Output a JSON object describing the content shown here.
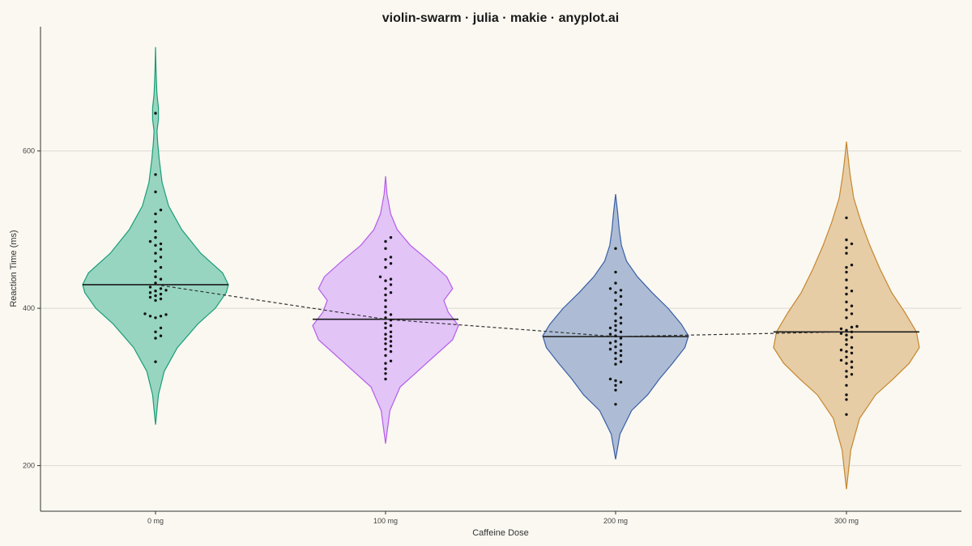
{
  "chart_data": {
    "type": "violin-swarm",
    "title": "violin-swarm · julia · makie · anyplot.ai",
    "xlabel": "Caffeine Dose",
    "ylabel": "Reaction Time (ms)",
    "ylim": [
      142,
      758
    ],
    "yticks": [
      200,
      400,
      600
    ],
    "categories": [
      "0 mg",
      "100 mg",
      "200 mg",
      "300 mg"
    ],
    "grid": "horizontal",
    "trend_line": "dashed line connecting group medians",
    "groups": [
      {
        "label": "0 mg",
        "color": "#1A9E77",
        "fill": "#97D5C1",
        "median": 430,
        "range": [
          252,
          732
        ],
        "density": [
          [
            252,
            0.0
          ],
          [
            290,
            0.04
          ],
          [
            320,
            0.12
          ],
          [
            350,
            0.3
          ],
          [
            380,
            0.58
          ],
          [
            400,
            0.82
          ],
          [
            420,
            0.97
          ],
          [
            430,
            1.0
          ],
          [
            445,
            0.92
          ],
          [
            470,
            0.62
          ],
          [
            500,
            0.36
          ],
          [
            530,
            0.18
          ],
          [
            560,
            0.09
          ],
          [
            590,
            0.05
          ],
          [
            610,
            0.03
          ],
          [
            625,
            0.02
          ],
          [
            640,
            0.04
          ],
          [
            655,
            0.04
          ],
          [
            672,
            0.02
          ],
          [
            700,
            0.008
          ],
          [
            732,
            0.0
          ]
        ],
        "points": [
          648,
          570,
          548,
          525,
          520,
          510,
          498,
          490,
          485,
          482,
          480,
          475,
          470,
          465,
          460,
          452,
          447,
          440,
          437,
          432,
          427,
          425,
          423,
          422,
          420,
          418,
          416,
          414,
          412,
          410,
          393,
          392,
          390,
          390,
          388,
          375,
          370,
          365,
          362,
          332
        ]
      },
      {
        "label": "100 mg",
        "color": "#B55DE8",
        "fill": "#E2C4F7",
        "median": 386,
        "range": [
          228,
          568
        ],
        "density": [
          [
            228,
            0.0
          ],
          [
            270,
            0.06
          ],
          [
            300,
            0.2
          ],
          [
            330,
            0.56
          ],
          [
            360,
            0.92
          ],
          [
            378,
            1.0
          ],
          [
            395,
            0.86
          ],
          [
            410,
            0.8
          ],
          [
            425,
            0.92
          ],
          [
            440,
            0.84
          ],
          [
            460,
            0.6
          ],
          [
            480,
            0.34
          ],
          [
            500,
            0.16
          ],
          [
            520,
            0.07
          ],
          [
            545,
            0.02
          ],
          [
            568,
            0.0
          ]
        ],
        "points": [
          490,
          485,
          476,
          465,
          462,
          457,
          452,
          440,
          437,
          435,
          430,
          425,
          420,
          417,
          410,
          402,
          395,
          392,
          388,
          385,
          381,
          378,
          375,
          370,
          367,
          364,
          361,
          358,
          355,
          352,
          348,
          345,
          340,
          333,
          330,
          323,
          317,
          310
        ]
      },
      {
        "label": "200 mg",
        "color": "#3A5FA8",
        "fill": "#ADBCD4",
        "median": 364,
        "range": [
          208,
          545
        ],
        "density": [
          [
            208,
            0.0
          ],
          [
            240,
            0.06
          ],
          [
            270,
            0.22
          ],
          [
            290,
            0.44
          ],
          [
            310,
            0.6
          ],
          [
            330,
            0.78
          ],
          [
            350,
            0.95
          ],
          [
            365,
            1.0
          ],
          [
            380,
            0.9
          ],
          [
            400,
            0.72
          ],
          [
            420,
            0.5
          ],
          [
            440,
            0.3
          ],
          [
            460,
            0.15
          ],
          [
            480,
            0.08
          ],
          [
            500,
            0.05
          ],
          [
            520,
            0.03
          ],
          [
            545,
            0.0
          ]
        ],
        "points": [
          476,
          446,
          432,
          425,
          423,
          420,
          415,
          410,
          405,
          400,
          393,
          388,
          384,
          381,
          378,
          375,
          372,
          370,
          367,
          365,
          362,
          358,
          356,
          354,
          351,
          348,
          346,
          343,
          340,
          336,
          332,
          329,
          310,
          308,
          306,
          302,
          296,
          278
        ]
      },
      {
        "label": "300 mg",
        "color": "#C7862E",
        "fill": "#E6CDA6",
        "median": 370,
        "range": [
          170,
          612
        ],
        "density": [
          [
            170,
            0.0
          ],
          [
            220,
            0.06
          ],
          [
            260,
            0.18
          ],
          [
            290,
            0.4
          ],
          [
            310,
            0.64
          ],
          [
            330,
            0.86
          ],
          [
            350,
            1.0
          ],
          [
            370,
            0.96
          ],
          [
            395,
            0.8
          ],
          [
            420,
            0.62
          ],
          [
            450,
            0.46
          ],
          [
            480,
            0.32
          ],
          [
            510,
            0.2
          ],
          [
            540,
            0.1
          ],
          [
            570,
            0.05
          ],
          [
            590,
            0.025
          ],
          [
            612,
            0.0
          ]
        ],
        "points": [
          515,
          487,
          482,
          477,
          470,
          455,
          452,
          446,
          436,
          426,
          422,
          418,
          408,
          403,
          398,
          393,
          388,
          377,
          376,
          374,
          372,
          370,
          368,
          366,
          363,
          360,
          354,
          350,
          347,
          345,
          343,
          338,
          334,
          332,
          330,
          325,
          320,
          316,
          313,
          302,
          290,
          284,
          265
        ]
      }
    ]
  }
}
